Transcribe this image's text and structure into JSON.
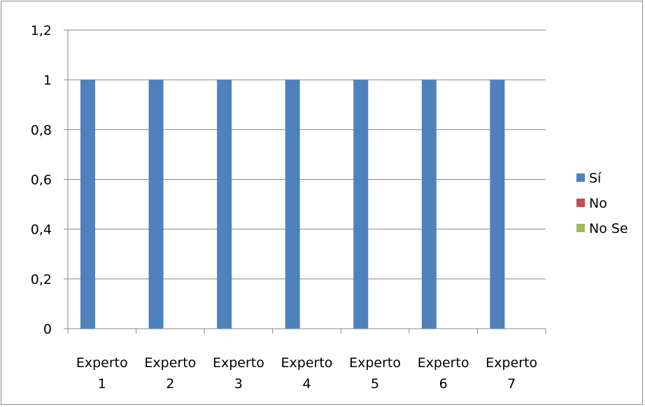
{
  "chart_data": {
    "type": "bar",
    "categories": [
      [
        "Experto",
        "1"
      ],
      [
        "Experto",
        "2"
      ],
      [
        "Experto",
        "3"
      ],
      [
        "Experto",
        "4"
      ],
      [
        "Experto",
        "5"
      ],
      [
        "Experto",
        "6"
      ],
      [
        "Experto",
        "7"
      ]
    ],
    "series": [
      {
        "name": "Sí",
        "color": "#4f81bd",
        "values": [
          1,
          1,
          1,
          1,
          1,
          1,
          1
        ]
      },
      {
        "name": "No",
        "color": "#c0504d",
        "values": [
          0,
          0,
          0,
          0,
          0,
          0,
          0
        ]
      },
      {
        "name": "No Se",
        "color": "#9bbb59",
        "values": [
          0,
          0,
          0,
          0,
          0,
          0,
          0
        ]
      }
    ],
    "yticks": [
      "0",
      "0,2",
      "0,4",
      "0,6",
      "0,8",
      "1",
      "1,2"
    ],
    "ylim": [
      0,
      1.2
    ],
    "grid": true,
    "legend_position": "right",
    "title": "",
    "xlabel": "",
    "ylabel": ""
  }
}
